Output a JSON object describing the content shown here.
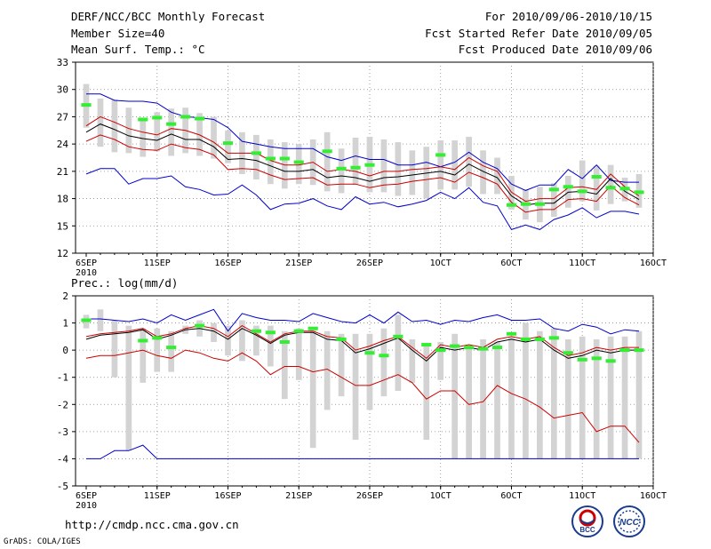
{
  "header": {
    "title": "DERF/NCC/BCC Monthly Forecast",
    "member_size": "Member Size=40",
    "variable": "Mean Surf. Temp.: °C",
    "period": "For 2010/09/06-2010/10/15",
    "started": "Fcst Started Refer Date 2010/09/05",
    "produced": "Fcst Produced Date 2010/09/06"
  },
  "footer": {
    "url": "http://cmdp.ncc.cma.gov.cn",
    "credit": "GrADS: COLA/IGES",
    "logo_left": "BCC",
    "logo_right": "NCC"
  },
  "x_ticks": [
    "6SEP",
    "11SEP",
    "16SEP",
    "21SEP",
    "26SEP",
    "1OCT",
    "6OCT",
    "11OCT",
    "16OCT"
  ],
  "x_year": "2010",
  "colors": {
    "max_line": "#0000cc",
    "spread_line": "#cc0000",
    "mean_line": "#000000",
    "box": "#d3d3d3",
    "marker": "#33ee33",
    "grid": "#888888"
  },
  "chart_data": [
    {
      "type": "line",
      "title": "Mean Surf. Temp.: °C",
      "ylabel": "°C",
      "ylim": [
        12,
        33
      ],
      "yticks": [
        12,
        15,
        18,
        21,
        24,
        27,
        30,
        33
      ],
      "x_day_range": [
        0,
        39
      ],
      "box_low": [
        25.8,
        23.7,
        23.1,
        23.0,
        22.6,
        23.2,
        22.7,
        23.0,
        22.7,
        22.4,
        21.9,
        20.7,
        20.1,
        19.6,
        19.1,
        19.6,
        19.5,
        18.8,
        18.6,
        19.5,
        18.7,
        18.7,
        18.3,
        18.4,
        18.0,
        19.0,
        19.0,
        19.3,
        18.5,
        18.5,
        16.8,
        15.7,
        15.4,
        16.0,
        17.0,
        17.7,
        16.7,
        17.4,
        17.7,
        17.0
      ],
      "box_high": [
        30.6,
        29.0,
        28.9,
        28.0,
        26.8,
        27.5,
        27.9,
        28.0,
        27.4,
        27.0,
        25.5,
        25.3,
        25.0,
        24.5,
        24.2,
        24.0,
        24.5,
        25.3,
        23.5,
        24.7,
        24.8,
        24.5,
        24.2,
        23.3,
        23.7,
        24.4,
        24.4,
        24.8,
        23.3,
        22.5,
        20.5,
        19.0,
        19.3,
        19.7,
        20.5,
        22.2,
        21.6,
        21.7,
        20.3,
        20.7
      ],
      "box_days": [
        0,
        1,
        2,
        3,
        4,
        5,
        6,
        7,
        8,
        9,
        10,
        11,
        12,
        13,
        14,
        15,
        16,
        17,
        18,
        19,
        20,
        21,
        22,
        23,
        24,
        25,
        26,
        27,
        28,
        29,
        30,
        31,
        32,
        33,
        34,
        35,
        36,
        37,
        38,
        39
      ],
      "marker_days": [
        0,
        4,
        5,
        6,
        7,
        8,
        10,
        12,
        13,
        14,
        15,
        17,
        18,
        19,
        20,
        25,
        30,
        31,
        32,
        33,
        34,
        35,
        36,
        37,
        38,
        39
      ],
      "marker_values": [
        28.3,
        26.7,
        26.9,
        26.2,
        27.0,
        26.8,
        24.1,
        23.0,
        22.4,
        22.4,
        22.0,
        23.2,
        21.3,
        21.4,
        21.7,
        22.8,
        17.3,
        17.4,
        17.4,
        19.0,
        19.3,
        18.8,
        20.4,
        19.2,
        19.1,
        18.7
      ],
      "series": [
        {
          "name": "max",
          "values": [
            29.5,
            29.5,
            28.8,
            28.7,
            28.7,
            28.5,
            27.5,
            27.0,
            26.9,
            26.7,
            25.8,
            24.3,
            24.0,
            23.7,
            23.5,
            23.5,
            23.5,
            22.6,
            22.2,
            22.7,
            22.3,
            22.3,
            21.7,
            21.7,
            22.0,
            21.5,
            22.0,
            23.1,
            22.0,
            21.3,
            19.6,
            18.9,
            19.5,
            19.5,
            21.2,
            20.2,
            21.7,
            20.0,
            19.8,
            19.8
          ]
        },
        {
          "name": "mean_upper",
          "values": [
            26.0,
            27.0,
            26.4,
            25.7,
            25.3,
            25.0,
            25.7,
            25.5,
            25.0,
            24.2,
            23.0,
            23.0,
            23.0,
            22.2,
            21.7,
            21.7,
            22.0,
            21.0,
            21.2,
            21.0,
            20.5,
            21.0,
            21.0,
            21.2,
            21.3,
            21.5,
            21.2,
            22.5,
            21.6,
            21.0,
            18.7,
            17.7,
            18.0,
            18.0,
            19.2,
            19.3,
            19.0,
            20.7,
            19.3,
            18.3
          ]
        },
        {
          "name": "mean",
          "values": [
            25.3,
            26.2,
            25.6,
            24.9,
            24.6,
            24.4,
            25.1,
            24.5,
            24.5,
            23.7,
            22.3,
            22.4,
            22.2,
            21.6,
            21.0,
            21.0,
            21.2,
            20.3,
            20.5,
            20.3,
            19.9,
            20.3,
            20.4,
            20.6,
            20.8,
            21.0,
            20.6,
            21.8,
            21.0,
            20.3,
            18.3,
            17.3,
            17.5,
            17.5,
            18.7,
            18.8,
            18.5,
            20.2,
            18.8,
            17.9
          ]
        },
        {
          "name": "mean_lower",
          "values": [
            24.3,
            25.0,
            24.5,
            23.7,
            23.4,
            23.3,
            24.0,
            23.6,
            23.4,
            22.8,
            21.2,
            21.3,
            21.2,
            20.6,
            20.1,
            20.2,
            20.3,
            19.5,
            19.6,
            19.6,
            19.2,
            19.5,
            19.6,
            19.9,
            20.1,
            20.3,
            19.8,
            20.9,
            20.3,
            19.6,
            17.6,
            16.5,
            16.8,
            16.8,
            17.9,
            18.0,
            17.7,
            19.4,
            18.1,
            17.3
          ]
        },
        {
          "name": "min",
          "values": [
            20.7,
            21.3,
            21.3,
            19.6,
            20.2,
            20.2,
            20.5,
            19.3,
            19.0,
            18.4,
            18.5,
            19.5,
            18.4,
            16.8,
            17.4,
            17.5,
            18.0,
            17.2,
            16.8,
            18.2,
            17.4,
            17.6,
            17.1,
            17.4,
            17.8,
            18.7,
            18.0,
            19.2,
            17.6,
            17.2,
            14.6,
            15.1,
            14.6,
            15.7,
            16.2,
            17.0,
            15.9,
            16.6,
            16.6,
            16.3
          ]
        }
      ]
    },
    {
      "type": "line",
      "title": "Prec.: log(mm/d)",
      "ylabel": "log(mm/d)",
      "ylim": [
        -5,
        2
      ],
      "yticks": [
        -5,
        -4,
        -3,
        -2,
        -1,
        0,
        1,
        2
      ],
      "x_day_range": [
        0,
        39
      ],
      "box_low": [
        0.8,
        0.7,
        -1.0,
        -3.7,
        -1.2,
        -0.8,
        -0.8,
        0.6,
        0.5,
        0.3,
        -0.2,
        -0.4,
        -0.2,
        -0.6,
        -1.8,
        -1.1,
        -3.6,
        -2.2,
        -1.7,
        -3.3,
        -2.2,
        -1.7,
        -1.5,
        -1.2,
        -3.3,
        -1.1,
        -4.0,
        -4.0,
        -4.0,
        -4.0,
        -4.0,
        -4.0,
        -4.0,
        -4.0,
        -4.0,
        -4.0,
        -4.0,
        -4.0,
        -4.0,
        -4.0
      ],
      "box_high": [
        1.3,
        1.5,
        1.1,
        0.9,
        0.8,
        0.8,
        0.7,
        0.9,
        1.1,
        1.0,
        0.9,
        1.1,
        0.9,
        0.9,
        0.7,
        0.8,
        0.8,
        0.7,
        0.6,
        0.6,
        0.6,
        0.8,
        1.3,
        0.4,
        0.2,
        0.3,
        0.6,
        0.2,
        0.4,
        0.3,
        0.5,
        1.0,
        0.7,
        0.8,
        0.4,
        0.5,
        0.4,
        0.5,
        0.5,
        0.7
      ],
      "box_days": [
        0,
        1,
        2,
        3,
        4,
        5,
        6,
        7,
        8,
        9,
        10,
        11,
        12,
        13,
        14,
        15,
        16,
        17,
        18,
        19,
        20,
        21,
        22,
        23,
        24,
        25,
        26,
        27,
        28,
        29,
        30,
        31,
        32,
        33,
        34,
        35,
        36,
        37,
        38,
        39
      ],
      "marker_days": [
        0,
        4,
        5,
        6,
        8,
        12,
        13,
        14,
        15,
        16,
        18,
        20,
        21,
        22,
        24,
        25,
        26,
        27,
        28,
        29,
        30,
        31,
        32,
        33,
        34,
        35,
        36,
        37,
        38,
        39
      ],
      "marker_values": [
        1.1,
        0.35,
        0.45,
        0.1,
        0.9,
        0.7,
        0.65,
        0.3,
        0.7,
        0.8,
        0.4,
        -0.1,
        -0.2,
        0.5,
        0.2,
        0.0,
        0.15,
        0.1,
        0.05,
        0.1,
        0.6,
        0.4,
        0.4,
        0.45,
        -0.1,
        -0.35,
        -0.3,
        -0.4,
        0.0,
        0.0
      ],
      "series": [
        {
          "name": "max",
          "values": [
            1.15,
            1.15,
            1.1,
            1.05,
            1.15,
            1.0,
            1.3,
            1.1,
            1.3,
            1.5,
            0.7,
            1.35,
            1.2,
            1.1,
            1.1,
            1.05,
            1.35,
            1.2,
            1.05,
            1.0,
            1.3,
            1.0,
            1.4,
            1.05,
            1.1,
            0.95,
            1.1,
            1.05,
            1.2,
            1.3,
            1.1,
            1.1,
            1.15,
            0.8,
            0.7,
            0.95,
            0.85,
            0.6,
            0.75,
            0.7
          ]
        },
        {
          "name": "mean_upper",
          "values": [
            0.5,
            0.6,
            0.65,
            0.7,
            0.8,
            0.5,
            0.6,
            0.8,
            0.9,
            0.8,
            0.5,
            0.9,
            0.6,
            0.3,
            0.6,
            0.7,
            0.7,
            0.5,
            0.45,
            0.0,
            0.15,
            0.35,
            0.5,
            0.1,
            -0.3,
            0.2,
            0.1,
            0.2,
            0.1,
            0.4,
            0.5,
            0.4,
            0.5,
            0.1,
            -0.2,
            -0.1,
            0.1,
            0.0,
            0.1,
            0.1
          ]
        },
        {
          "name": "mean",
          "values": [
            0.4,
            0.55,
            0.6,
            0.65,
            0.75,
            0.4,
            0.55,
            0.75,
            0.8,
            0.7,
            0.4,
            0.8,
            0.55,
            0.25,
            0.55,
            0.65,
            0.65,
            0.4,
            0.35,
            -0.1,
            0.05,
            0.25,
            0.45,
            0.0,
            -0.4,
            0.1,
            0.0,
            0.1,
            0.0,
            0.3,
            0.4,
            0.3,
            0.4,
            0.0,
            -0.3,
            -0.2,
            0.0,
            -0.1,
            0.0,
            0.0
          ]
        },
        {
          "name": "mean_lower",
          "values": [
            -0.3,
            -0.2,
            -0.2,
            -0.1,
            0.0,
            -0.2,
            -0.3,
            0.0,
            -0.1,
            -0.3,
            -0.4,
            -0.1,
            -0.4,
            -0.9,
            -0.6,
            -0.6,
            -0.8,
            -0.7,
            -1.0,
            -1.3,
            -1.3,
            -1.1,
            -0.9,
            -1.2,
            -1.8,
            -1.5,
            -1.5,
            -2.0,
            -1.9,
            -1.3,
            -1.6,
            -1.8,
            -2.1,
            -2.5,
            -2.4,
            -2.3,
            -3.0,
            -2.8,
            -2.8,
            -3.4
          ]
        },
        {
          "name": "min",
          "values": [
            -4.0,
            -4.0,
            -3.7,
            -3.7,
            -3.5,
            -4.0,
            -4.0,
            -4.0,
            -4.0,
            -4.0,
            -4.0,
            -4.0,
            -4.0,
            -4.0,
            -4.0,
            -4.0,
            -4.0,
            -4.0,
            -4.0,
            -4.0,
            -4.0,
            -4.0,
            -4.0,
            -4.0,
            -4.0,
            -4.0,
            -4.0,
            -4.0,
            -4.0,
            -4.0,
            -4.0,
            -4.0,
            -4.0,
            -4.0,
            -4.0,
            -4.0,
            -4.0,
            -4.0,
            -4.0,
            -4.0
          ]
        }
      ]
    }
  ]
}
